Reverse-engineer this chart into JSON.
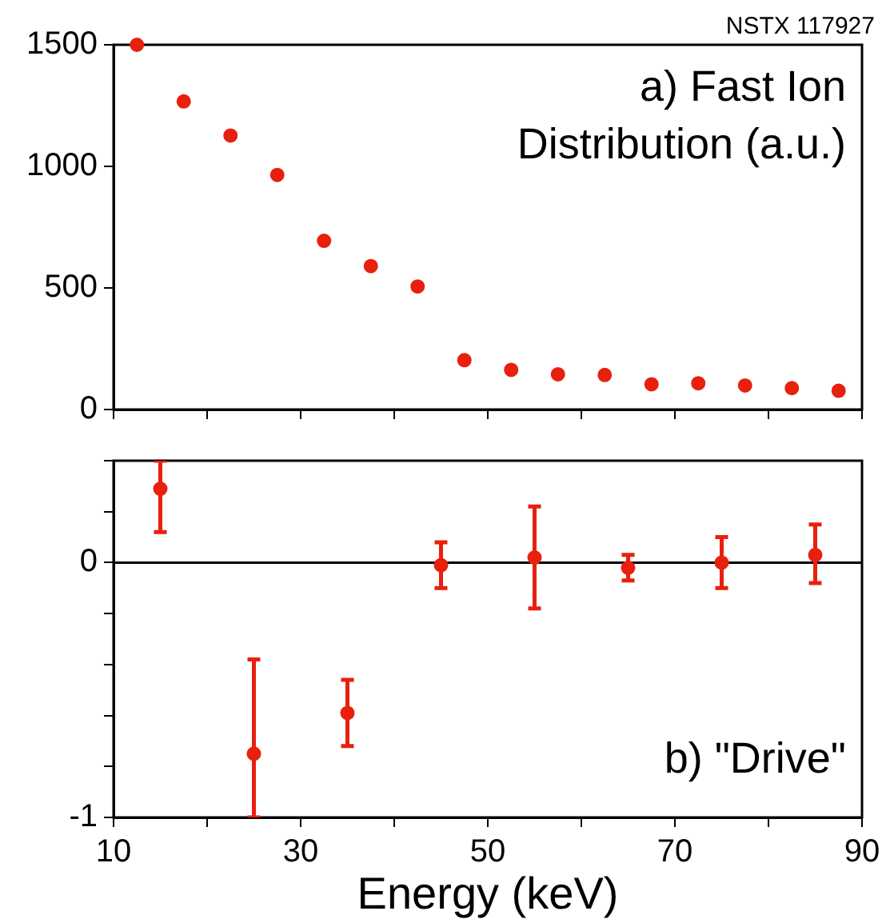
{
  "chart_data": [
    {
      "type": "scatter",
      "title": "a) Fast Ion Distribution (a.u.)",
      "annotations": [
        "NSTX 117927"
      ],
      "x": [
        12.5,
        17.5,
        22.5,
        27.5,
        32.5,
        37.5,
        42.5,
        47.5,
        52.5,
        57.5,
        62.5,
        67.5,
        72.5,
        77.5,
        82.5,
        87.5
      ],
      "values": [
        1500,
        1267,
        1127,
        965,
        694,
        590,
        506,
        203,
        163,
        145,
        142,
        104,
        108,
        99,
        88,
        77
      ],
      "color": "#e8200e",
      "marker": "circle",
      "xlim": [
        10,
        90
      ],
      "xticks": [
        10,
        20,
        30,
        40,
        50,
        60,
        70,
        80,
        90
      ],
      "ylim": [
        0,
        1500
      ],
      "yticks": [
        0,
        500,
        1000,
        1500
      ],
      "tick_labels": "y",
      "grid": false,
      "legend": false
    },
    {
      "type": "scatter",
      "title": "b) \"Drive\"",
      "xlabel": "Energy (keV)",
      "x": [
        15,
        25,
        35,
        45,
        55,
        65,
        75,
        85
      ],
      "values": [
        0.29,
        -0.75,
        -0.59,
        -0.01,
        0.02,
        -0.02,
        0.0,
        0.03
      ],
      "errors": [
        [
          0.12,
          0.4
        ],
        [
          -1.0,
          -0.38
        ],
        0.13,
        0.09,
        0.2,
        0.05,
        0.1,
        [
          -0.08,
          0.15
        ]
      ],
      "color": "#e8200e",
      "marker": "circle",
      "xlim": [
        10,
        90
      ],
      "xticks": [
        10,
        {
          "value": 20,
          "label": null
        },
        30,
        {
          "value": 40,
          "label": null
        },
        50,
        {
          "value": 60,
          "label": null
        },
        70,
        {
          "value": 80,
          "label": null
        },
        90
      ],
      "ylim": [
        -1,
        0.4
      ],
      "yticks": [
        -1,
        {
          "value": -0.8,
          "label": null
        },
        {
          "value": -0.6,
          "label": null
        },
        {
          "value": -0.4,
          "label": null
        },
        {
          "value": -0.2,
          "label": null
        },
        0,
        {
          "value": 0.2,
          "label": null
        },
        {
          "value": 0.4,
          "label": null
        }
      ],
      "ref_lines": [
        {
          "axis": "y",
          "value": 0,
          "color": "#000000"
        }
      ],
      "grid": false,
      "legend": false
    }
  ]
}
